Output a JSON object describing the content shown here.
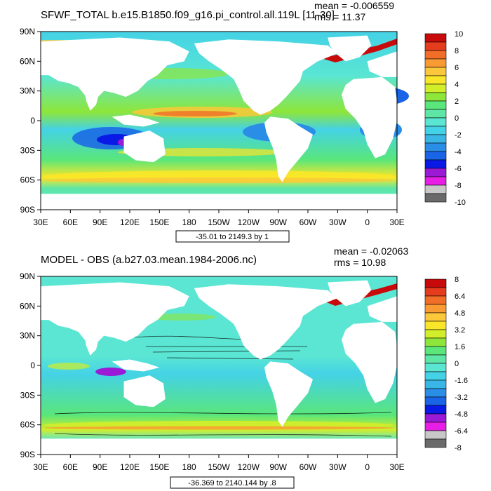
{
  "colors": {
    "land": "#ffffff",
    "frame": "#000000",
    "palette": [
      "#6a6a6a",
      "#c8c8c8",
      "#e61ee6",
      "#9a1ad6",
      "#0a1ae6",
      "#1a64e6",
      "#2a8ee6",
      "#3ab6e6",
      "#44d2e6",
      "#5ae6d2",
      "#5ee6a6",
      "#5ae67a",
      "#8ee63a",
      "#d2ee2a",
      "#fae628",
      "#fac83a",
      "#fa9a32",
      "#f06e28",
      "#e63c1e",
      "#c80a0a"
    ]
  },
  "chart_data": [
    {
      "type": "heatmap",
      "title": "SFWF_TOTAL b.e15.B1850.f09_g16.pi_control.all.119L [11-30]",
      "stats": {
        "mean": "mean = -0.006559",
        "rms": "rms = 11.37"
      },
      "subtitle_box": "-35.01 to 2149.3 by 1",
      "x_ticks": [
        "30E",
        "60E",
        "90E",
        "120E",
        "150E",
        "180",
        "150W",
        "120W",
        "90W",
        "60W",
        "30W",
        "0",
        "30E"
      ],
      "y_ticks": [
        "90N",
        "60N",
        "30N",
        "0",
        "30S",
        "60S",
        "90S"
      ],
      "colorbar": {
        "labels": [
          "10",
          "8",
          "6",
          "4",
          "2",
          "0",
          "-2",
          "-4",
          "-6",
          "-8",
          "-10"
        ],
        "levels": 20
      },
      "xlim": [
        30,
        390
      ],
      "ylim": [
        -90,
        90
      ]
    },
    {
      "type": "heatmap",
      "title": "MODEL - OBS (a.b27.03.mean.1984-2006.nc)",
      "stats": {
        "mean": "mean = -0.02063",
        "rms": "rms = 10.98"
      },
      "subtitle_box": "-36.369 to 2140.144 by .8",
      "x_ticks": [
        "30E",
        "60E",
        "90E",
        "120E",
        "150E",
        "180",
        "150W",
        "120W",
        "90W",
        "60W",
        "30W",
        "0",
        "30E"
      ],
      "y_ticks": [
        "90N",
        "60N",
        "30N",
        "0",
        "30S",
        "60S",
        "90S"
      ],
      "colorbar": {
        "labels": [
          "8",
          "6.4",
          "4.8",
          "3.2",
          "1.6",
          "0",
          "-1.6",
          "-3.2",
          "-4.8",
          "-6.4",
          "-8"
        ],
        "levels": 20
      },
      "xlim": [
        30,
        390
      ],
      "ylim": [
        -90,
        90
      ]
    }
  ]
}
